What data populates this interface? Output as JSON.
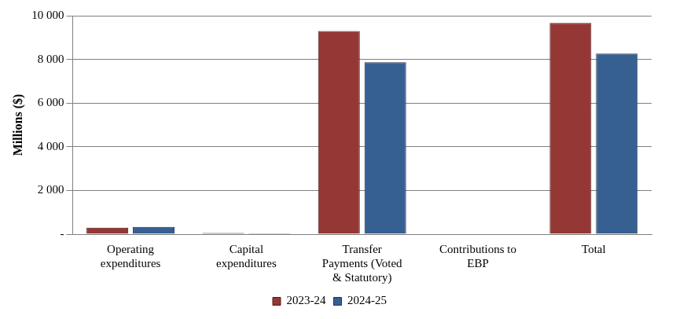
{
  "chart_data": {
    "type": "bar",
    "y_label": "Millions ($)",
    "categories": [
      "Operating expenditures",
      "Capital expenditures",
      "Transfer Payments (Voted & Statutory)",
      "Contributions to EBP",
      "Total"
    ],
    "series": [
      {
        "name": "2023-24",
        "color": "#953735",
        "values": [
          300,
          50,
          9300,
          20,
          9670
        ]
      },
      {
        "name": "2024-25",
        "color": "#376092",
        "values": [
          330,
          40,
          7870,
          20,
          8260
        ]
      }
    ],
    "ylim": [
      0,
      10000
    ],
    "yticks": [
      {
        "value": 0,
        "label": "-"
      },
      {
        "value": 2000,
        "label": "2 000"
      },
      {
        "value": 4000,
        "label": "4 000"
      },
      {
        "value": 6000,
        "label": "6 000"
      },
      {
        "value": 8000,
        "label": "8 000"
      },
      {
        "value": 10000,
        "label": "10 000"
      }
    ],
    "grid": true,
    "legend": "bottom"
  }
}
